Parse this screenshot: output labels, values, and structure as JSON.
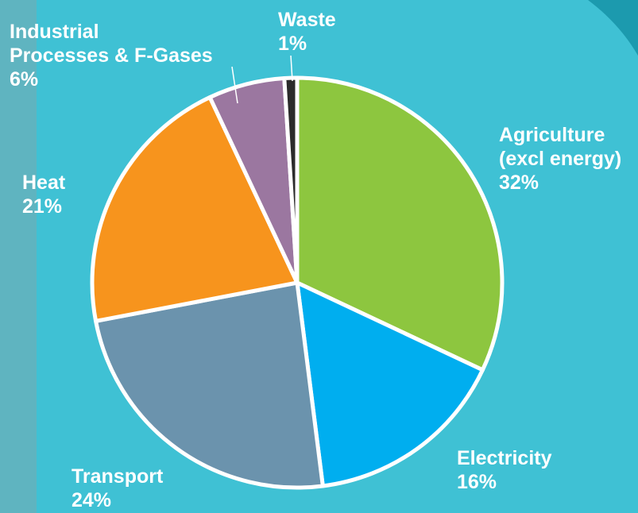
{
  "chart_data": {
    "type": "pie",
    "categories": [
      "Agriculture\n(excl energy)",
      "Electricity",
      "Transport",
      "Heat",
      "Industrial\nProcesses & F-Gases",
      "Waste"
    ],
    "values": [
      32,
      16,
      24,
      21,
      6,
      1
    ],
    "value_labels": [
      "32%",
      "16%",
      "24%",
      "21%",
      "6%",
      "1%"
    ],
    "colors": [
      "#8dc63f",
      "#00aeef",
      "#6b93ad",
      "#f7941d",
      "#9b77a0",
      "#2b2b2b"
    ]
  }
}
